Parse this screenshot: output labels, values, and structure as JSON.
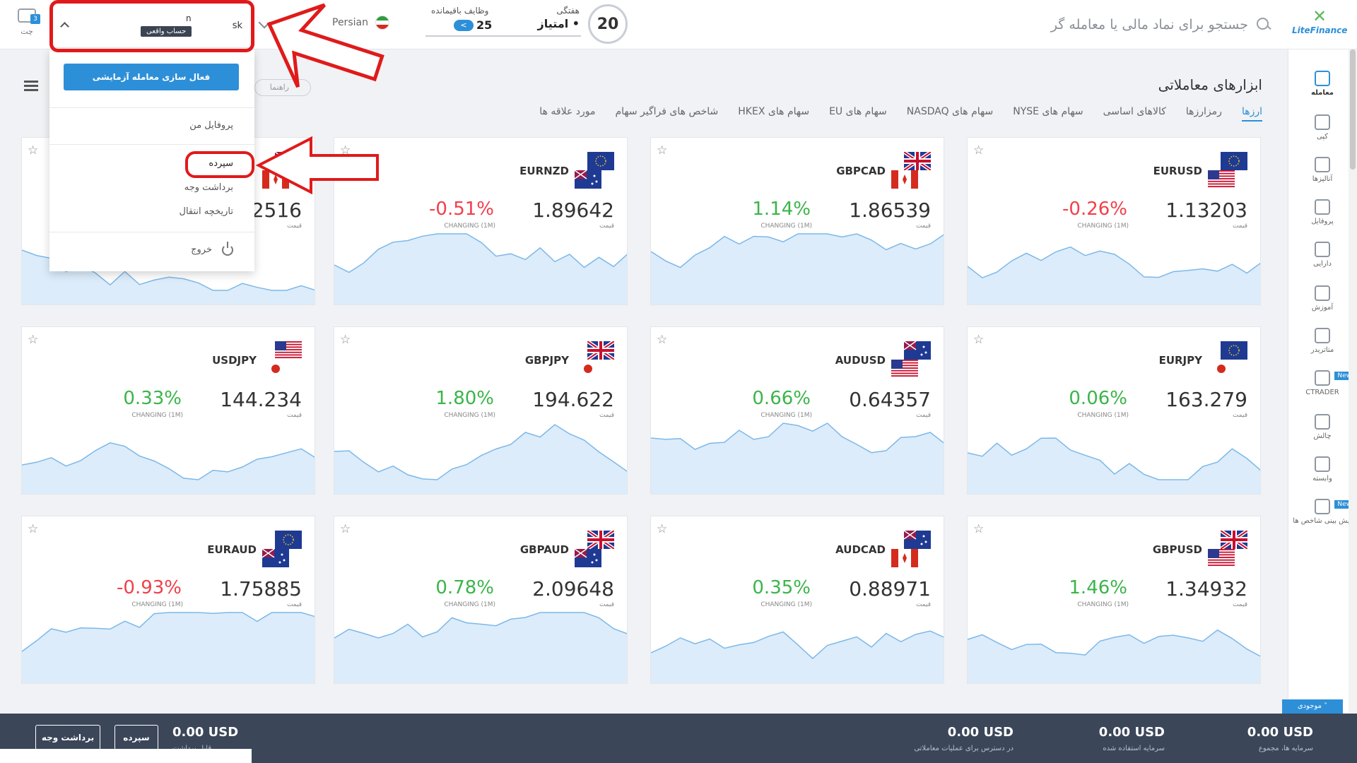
{
  "header": {
    "search_placeholder": "جستجو برای نماد مالی یا معامله گر",
    "logo_text": "LiteFinance",
    "weekly_label": "هفتگی",
    "weekly_number": "20",
    "points_label": "• امتیاز",
    "tasks_label": "وظایف باقیمانده",
    "tasks_count": "25",
    "language": "Persian",
    "chat_label": "چت",
    "chat_count": "3"
  },
  "account": {
    "name": "sk",
    "number": "n",
    "type": "حساب واقعی"
  },
  "dropdown": {
    "demo_button": "فعال سازی معامله آزمایشی",
    "profile": "پروفایل من",
    "deposit": "سپرده",
    "withdraw": "برداشت وجه",
    "transfer_history": "تاریخچه انتقال",
    "logout": "خروج"
  },
  "toolbar": {
    "guide": "راهنما"
  },
  "page": {
    "title": "ابزارهای معاملاتی",
    "tabs": [
      "ارزها",
      "رمزارزها",
      "کالاهای اساسی",
      "سهام های NYSE",
      "سهام های NASDAQ",
      "سهام های EU",
      "سهام های HKEX",
      "شاخص های فراگیر سهام",
      "مورد علاقه ها"
    ]
  },
  "cards": [
    {
      "symbol": "EURUSD",
      "price": "1.13203",
      "change": "-0.26%",
      "dir": "down",
      "price_label": "قیمت",
      "change_label": "CHANGING (1M)"
    },
    {
      "symbol": "GBPCAD",
      "price": "1.86539",
      "change": "1.14%",
      "dir": "up",
      "price_label": "قیمت",
      "change_label": "CHANGING (1M)"
    },
    {
      "symbol": "EURNZD",
      "price": "1.89642",
      "change": "-0.51%",
      "dir": "down",
      "price_label": "قیمت",
      "change_label": "CHANGING (1M)"
    },
    {
      "symbol": "",
      "price": "2516",
      "change": "",
      "dir": "up",
      "price_label": "قیمت",
      "change_label": ""
    },
    {
      "symbol": "EURJPY",
      "price": "163.279",
      "change": "0.06%",
      "dir": "up",
      "price_label": "قیمت",
      "change_label": "CHANGING (1M)"
    },
    {
      "symbol": "AUDUSD",
      "price": "0.64357",
      "change": "0.66%",
      "dir": "up",
      "price_label": "قیمت",
      "change_label": "CHANGING (1M)"
    },
    {
      "symbol": "GBPJPY",
      "price": "194.622",
      "change": "1.80%",
      "dir": "up",
      "price_label": "قیمت",
      "change_label": "CHANGING (1M)"
    },
    {
      "symbol": "USDJPY",
      "price": "144.234",
      "change": "0.33%",
      "dir": "up",
      "price_label": "قیمت",
      "change_label": "CHANGING (1M)"
    },
    {
      "symbol": "GBPUSD",
      "price": "1.34932",
      "change": "1.46%",
      "dir": "up",
      "price_label": "قیمت",
      "change_label": "CHANGING (1M)"
    },
    {
      "symbol": "AUDCAD",
      "price": "0.88971",
      "change": "0.35%",
      "dir": "up",
      "price_label": "قیمت",
      "change_label": "CHANGING (1M)"
    },
    {
      "symbol": "GBPAUD",
      "price": "2.09648",
      "change": "0.78%",
      "dir": "up",
      "price_label": "قیمت",
      "change_label": "CHANGING (1M)"
    },
    {
      "symbol": "EURAUD",
      "price": "1.75885",
      "change": "-0.93%",
      "dir": "down",
      "price_label": "قیمت",
      "change_label": "CHANGING (1M)"
    }
  ],
  "sidebar": {
    "items": [
      {
        "label": "معامله",
        "icon": "chart-icon"
      },
      {
        "label": "کپی",
        "icon": "copy-icon"
      },
      {
        "label": "آنالیزها",
        "icon": "analysis-icon"
      },
      {
        "label": "پروفایل",
        "icon": "profile-icon"
      },
      {
        "label": "دارایی",
        "icon": "dollar-icon"
      },
      {
        "label": "آموزش",
        "icon": "education-icon"
      },
      {
        "label": "متاتریدر",
        "icon": "mt-icon"
      },
      {
        "label": "CTRADER",
        "icon": "ct-icon"
      },
      {
        "label": "چالش",
        "icon": "challenge-icon"
      },
      {
        "label": "وابسته",
        "icon": "handshake-icon"
      },
      {
        "label": "پیش بینی شاخص ها",
        "icon": "forecast-icon"
      }
    ],
    "new_badge": "New"
  },
  "bottom": {
    "balance_tab": "موجودی",
    "total_value": "0.00 USD",
    "total_label": "سرمایه ها، مجموع",
    "used_value": "0.00 USD",
    "used_label": "سرمایه استفاده شده",
    "available_value": "0.00 USD",
    "available_label": "در دسترس برای عملیات معاملاتی",
    "withdrawable_value": "0.00 USD",
    "withdrawable_label": "قابل برداشت",
    "deposit_button": "سپرده",
    "withdraw_button": "برداشت وجه"
  },
  "colors": {
    "accent": "#2d8fd8",
    "up": "#3bb54a",
    "down": "#f0404b",
    "annotation": "#e01a1a"
  }
}
